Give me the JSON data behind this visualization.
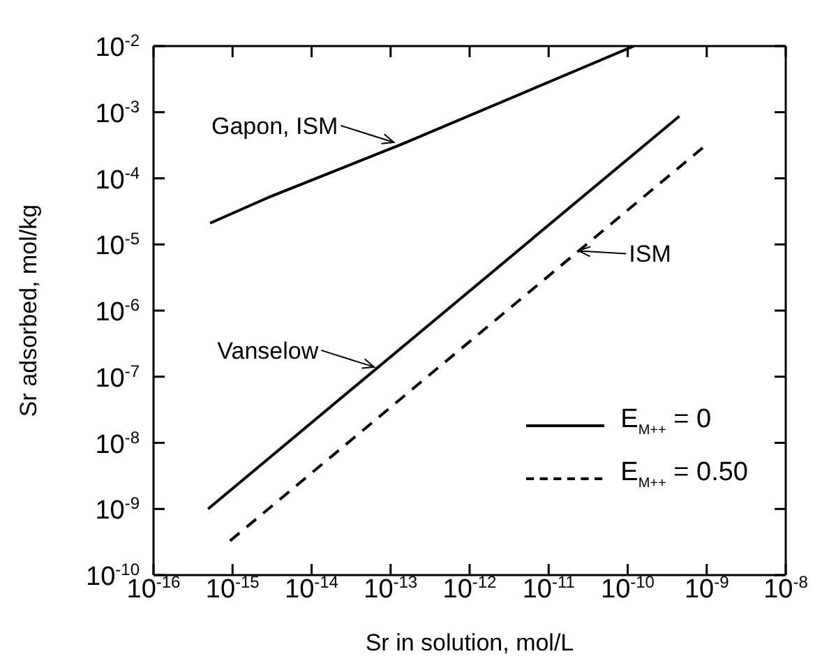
{
  "chart_data": {
    "type": "line",
    "xlabel": "Sr in solution, mol/L",
    "ylabel": "Sr adsorbed, mol/kg",
    "log": "xy",
    "xlim": [
      1e-16,
      1e-08
    ],
    "ylim": [
      1e-10,
      0.01
    ],
    "xticks": [
      {
        "value": 1e-16,
        "label": "10$^{-16}$"
      },
      {
        "value": 1e-15,
        "label": "10$^{-15}$"
      },
      {
        "value": 1e-14,
        "label": "10$^{-14}$"
      },
      {
        "value": 1e-13,
        "label": "10$^{-13}$"
      },
      {
        "value": 1e-12,
        "label": "10$^{-12}$"
      },
      {
        "value": 1e-11,
        "label": "10$^{-11}$"
      },
      {
        "value": 1e-10,
        "label": "10$^{-10}$"
      },
      {
        "value": 1e-09,
        "label": "10$^{-9}$"
      },
      {
        "value": 1e-08,
        "label": "10$^{-8}$"
      }
    ],
    "yticks": [
      {
        "value": 1e-10,
        "label": "10$^{-10}$"
      },
      {
        "value": 1e-09,
        "label": "10$^{-9}$"
      },
      {
        "value": 1e-08,
        "label": "10$^{-8}$"
      },
      {
        "value": 1e-07,
        "label": "10$^{-7}$"
      },
      {
        "value": 1e-06,
        "label": "10$^{-6}$"
      },
      {
        "value": 1e-05,
        "label": "10$^{-5}$"
      },
      {
        "value": 0.0001,
        "label": "10$^{-4}$"
      },
      {
        "value": 0.001,
        "label": "10$^{-3}$"
      },
      {
        "value": 0.01,
        "label": "10$^{-2}$"
      }
    ],
    "series": [
      {
        "name": "E$_{M++}$ = 0",
        "color": "#000000",
        "line_style": "solid",
        "x": [
          5.2e-16,
          2.8e-15,
          1.4e-13,
          1.2e-10
        ],
        "values": [
          2.1e-05,
          5.1e-05,
          0.00033,
          0.01
        ]
      },
      {
        "color": "#000000",
        "line_style": "solid",
        "x": [
          4.9e-16,
          4.5e-10
        ],
        "values": [
          1e-09,
          0.00087
        ]
      },
      {
        "name": "E$_{M++}$ = 0.50",
        "color": "#000000",
        "line_style": "dashed",
        "x": [
          9.3e-16,
          8.9e-10
        ],
        "values": [
          3.3e-10,
          0.00029
        ]
      }
    ],
    "annotations": [
      {
        "text": "Gapon, ISM",
        "x": 1.1e-13,
        "y": 0.00035
      },
      {
        "text": "ISM",
        "x": 2.4e-11,
        "y": 8e-06
      },
      {
        "text": "Vanselow",
        "x": 6.2e-14,
        "y": 1.4e-07
      }
    ],
    "legend": "bottom right",
    "grid": false,
    "marker": "none"
  }
}
